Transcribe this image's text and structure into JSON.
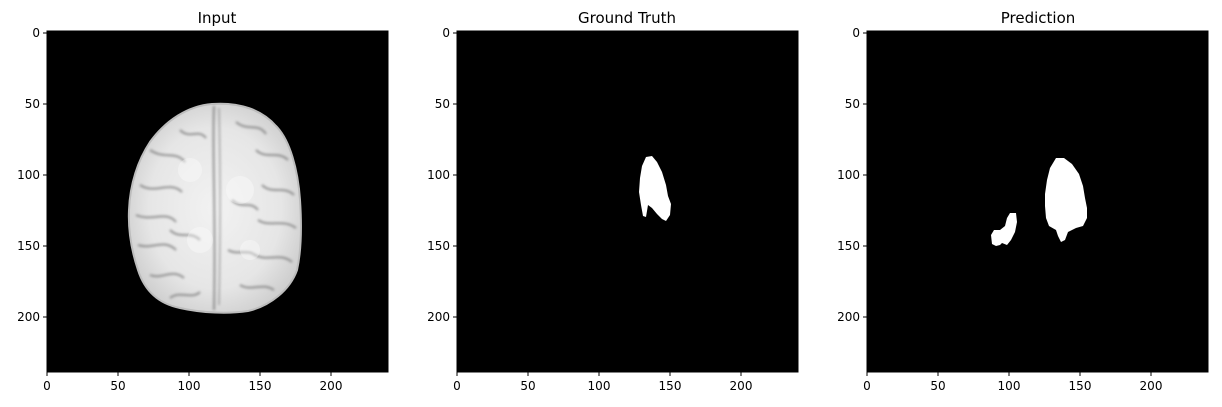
{
  "figure": {
    "panels": [
      {
        "title": "Input"
      },
      {
        "title": "Ground Truth"
      },
      {
        "title": "Prediction"
      }
    ],
    "x_ticks": [
      "0",
      "50",
      "100",
      "150",
      "200"
    ],
    "y_ticks": [
      "0",
      "50",
      "100",
      "150",
      "200"
    ],
    "colors": {
      "background": "#000000",
      "mask": "#ffffff",
      "brain": "#d9d9d9",
      "axis": "#000000"
    }
  }
}
